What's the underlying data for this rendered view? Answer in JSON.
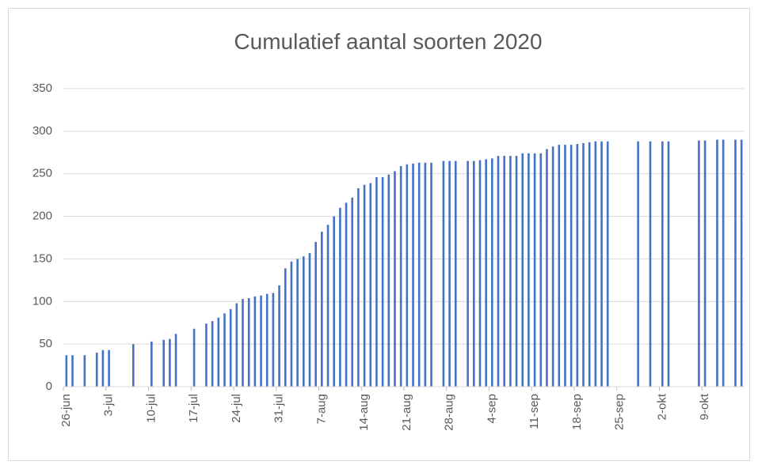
{
  "chart_data": {
    "type": "bar",
    "title": "Cumulatief aantal soorten 2020",
    "categories": [
      "26-jun",
      null,
      null,
      null,
      null,
      null,
      null,
      "3-jul",
      null,
      null,
      null,
      null,
      null,
      null,
      "10-jul",
      null,
      null,
      null,
      null,
      null,
      null,
      "17-jul",
      null,
      null,
      null,
      null,
      null,
      null,
      "24-jul",
      null,
      null,
      null,
      null,
      null,
      null,
      "31-jul",
      null,
      null,
      null,
      null,
      null,
      null,
      "7-aug",
      null,
      null,
      null,
      null,
      null,
      null,
      "14-aug",
      null,
      null,
      null,
      null,
      null,
      null,
      "21-aug",
      null,
      null,
      null,
      null,
      null,
      null,
      "28-aug",
      null,
      null,
      null,
      null,
      null,
      null,
      "4-sep",
      null,
      null,
      null,
      null,
      null,
      null,
      "11-sep",
      null,
      null,
      null,
      null,
      null,
      null,
      "18-sep",
      null,
      null,
      null,
      null,
      null,
      null,
      "25-sep",
      null,
      null,
      null,
      null,
      null,
      null,
      "2-okt",
      null,
      null,
      null,
      null,
      null,
      null,
      "9-okt",
      null,
      null,
      null,
      null,
      null,
      null
    ],
    "values": [
      37,
      37,
      null,
      37,
      null,
      40,
      43,
      43,
      null,
      null,
      null,
      50,
      null,
      null,
      53,
      null,
      55,
      56,
      62,
      null,
      null,
      68,
      null,
      74,
      77,
      81,
      86,
      91,
      98,
      103,
      104,
      106,
      107,
      109,
      110,
      119,
      139,
      147,
      150,
      153,
      157,
      170,
      182,
      190,
      200,
      210,
      216,
      222,
      233,
      237,
      239,
      246,
      246,
      249,
      253,
      259,
      261,
      262,
      263,
      263,
      263,
      null,
      265,
      265,
      265,
      null,
      265,
      265,
      266,
      267,
      268,
      271,
      271,
      271,
      271,
      274,
      274,
      274,
      274,
      279,
      282,
      284,
      284,
      284,
      285,
      286,
      287,
      288,
      288,
      288,
      null,
      null,
      null,
      null,
      288,
      null,
      288,
      null,
      288,
      288,
      null,
      null,
      null,
      null,
      289,
      289,
      null,
      290,
      290,
      null,
      290,
      290
    ],
    "color": "#4472c4",
    "ylim": [
      0,
      350
    ],
    "yticks": [
      0,
      50,
      100,
      150,
      200,
      250,
      300,
      350
    ],
    "grid": true
  }
}
